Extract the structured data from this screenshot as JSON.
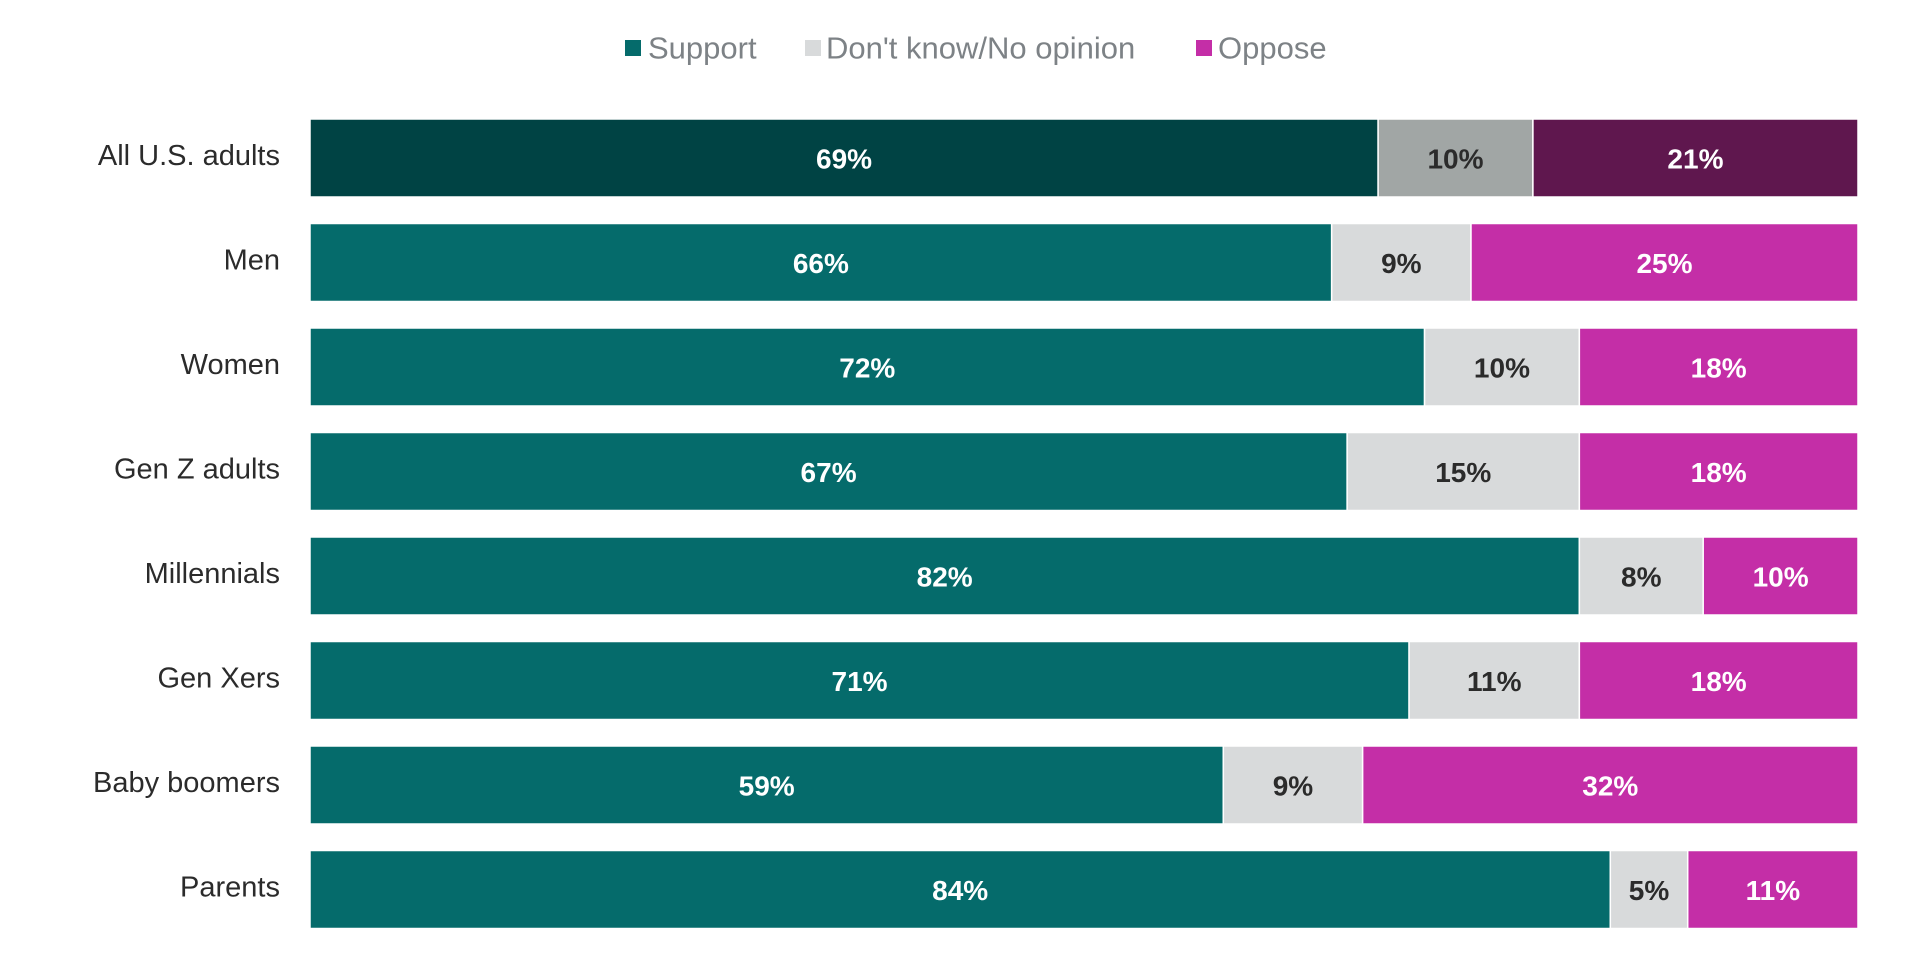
{
  "chart_data": {
    "type": "bar",
    "orientation": "horizontal",
    "stacked": true,
    "categories": [
      "All U.S. adults",
      "Men",
      "Women",
      "Gen Z adults",
      "Millennials",
      "Gen Xers",
      "Baby boomers",
      "Parents"
    ],
    "series": [
      {
        "name": "Support",
        "values": [
          69,
          66,
          72,
          67,
          82,
          71,
          59,
          84
        ],
        "labels": [
          "69%",
          "66%",
          "72%",
          "67%",
          "82%",
          "71%",
          "59%",
          "84%"
        ],
        "color": "#056b6b",
        "highlight_color": "#004344",
        "label_color": "#ffffff"
      },
      {
        "name": "Don't know/No opinion",
        "values": [
          10,
          9,
          10,
          15,
          8,
          11,
          9,
          5
        ],
        "labels": [
          "10%",
          "9%",
          "10%",
          "15%",
          "8%",
          "11%",
          "9%",
          "5%"
        ],
        "color": "#d8dadb",
        "highlight_color": "#a1a6a5",
        "label_color": "#2b2b2b"
      },
      {
        "name": "Oppose",
        "values": [
          21,
          25,
          18,
          18,
          10,
          18,
          32,
          11
        ],
        "labels": [
          "21%",
          "25%",
          "18%",
          "18%",
          "10%",
          "18%",
          "32%",
          "11%"
        ],
        "color": "#c42ea7",
        "highlight_color": "#5f174e",
        "label_color": "#ffffff"
      }
    ],
    "highlighted_category": "All U.S. adults",
    "legend": "top-center",
    "xlim": [
      0,
      100
    ],
    "grid": false,
    "title": "",
    "xlabel": "",
    "ylabel": ""
  }
}
